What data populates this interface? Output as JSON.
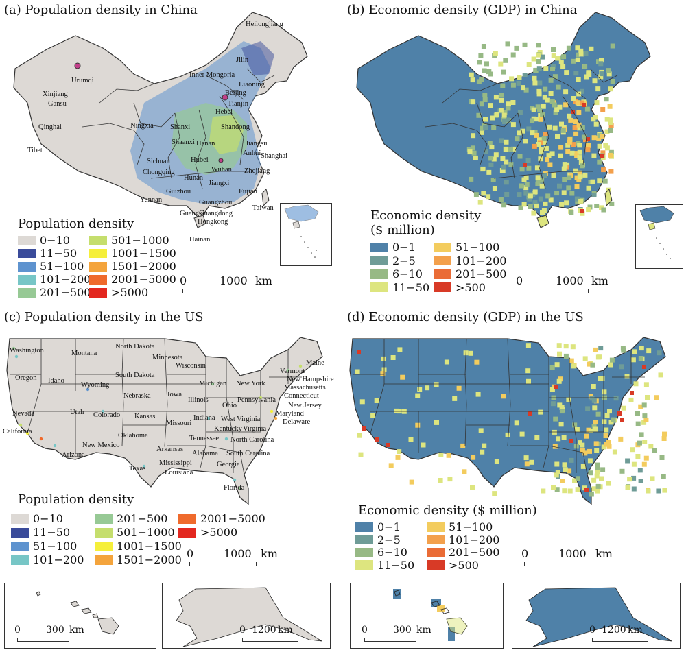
{
  "panels": {
    "a": {
      "title": "(a) Population density in China"
    },
    "b": {
      "title": "(b) Economic density (GDP) in China"
    },
    "c": {
      "title": "(c) Population density in the US"
    },
    "d": {
      "title": "(d) Economic density (GDP) in the US"
    }
  },
  "colors": {
    "land": "#ddd9d5",
    "border": "#333333",
    "econ_base": "#4f81a8"
  },
  "pop_legend": {
    "title": "Population density",
    "items": [
      {
        "label": "0−10",
        "color": "#ddd9d5"
      },
      {
        "label": "11−50",
        "color": "#3a4b9a"
      },
      {
        "label": "51−100",
        "color": "#5e93cf"
      },
      {
        "label": "101−200",
        "color": "#77c6c6"
      },
      {
        "label": "201−500",
        "color": "#97c995"
      },
      {
        "label": "501−1000",
        "color": "#c5de6d"
      },
      {
        "label": "1001−1500",
        "color": "#f5ef3a"
      },
      {
        "label": "1501−2000",
        "color": "#f4a43c"
      },
      {
        "label": "2001−5000",
        "color": "#ef6a2c"
      },
      {
        "label": ">5000",
        "color": "#e3271f"
      }
    ]
  },
  "econ_legend": {
    "title_china_line1": "Economic density",
    "title_china_line2": "($ million)",
    "title_us": "Economic density ($ million)",
    "items": [
      {
        "label": "0−1",
        "color": "#4f81a8"
      },
      {
        "label": "2−5",
        "color": "#6f9c97"
      },
      {
        "label": "6−10",
        "color": "#97b985"
      },
      {
        "label": "11−50",
        "color": "#dde57f"
      },
      {
        "label": "51−100",
        "color": "#f3cc5e"
      },
      {
        "label": "101−200",
        "color": "#f3a04c"
      },
      {
        "label": "201−500",
        "color": "#ea6c36"
      },
      {
        "label": ">500",
        "color": "#d83a26"
      }
    ]
  },
  "scalebars": {
    "china": {
      "zero": "0",
      "dist": "1000",
      "unit": "km"
    },
    "us": {
      "zero": "0",
      "dist": "1000",
      "unit": "km"
    },
    "hawaii": {
      "zero": "0",
      "dist": "300",
      "unit": "km"
    },
    "alaska": {
      "zero": "0",
      "dist": "1200",
      "unit": "km"
    }
  },
  "china_labels": [
    "Urumqi",
    "Xinjiang",
    "Gansu",
    "Qinghai",
    "Tibet",
    "Heilongjiang",
    "Jilin",
    "Inner Mongoria",
    "Liaoning",
    "Beijing",
    "Tianjin",
    "Hebei",
    "Ningxia",
    "Shanxi",
    "Shandong",
    "Shaanxi",
    "Henan",
    "Jiangsu",
    "Anhui",
    "Shanghai",
    "Hubei",
    "Sichuan",
    "Chongqing",
    "Wuhan",
    "Zhejiang",
    "Hunan",
    "Jiangxi",
    "Guizhou",
    "Fujian",
    "Yunnan",
    "Guangzhou",
    "Taiwan",
    "Guangxi",
    "Guangdong",
    "Hongkong",
    "Hainan"
  ],
  "us_labels": [
    "Washington",
    "Montana",
    "North Dakota",
    "Minnesota",
    "Oregon",
    "Idaho",
    "South Dakota",
    "Wisconsin",
    "Wyoming",
    "Maine",
    "Vermont",
    "New Hampshire",
    "Michigan",
    "New York",
    "Massachusetts",
    "Connecticut",
    "Nebraska",
    "Iowa",
    "Illinois",
    "Pennsylvania",
    "Ohio",
    "New Jersey",
    "Nevada",
    "Utah",
    "Colorado",
    "Kansas",
    "Indiana",
    "West Virginia",
    "Maryland",
    "Delaware",
    "California",
    "Missouri",
    "Kentucky",
    "Virginia",
    "Oklahoma",
    "Tennessee",
    "North Carolina",
    "New Mexico",
    "Arizona",
    "Arkansas",
    "South Carolina",
    "Mississippi",
    "Alabama",
    "Georgia",
    "Texas",
    "Louisiana",
    "Florida"
  ]
}
